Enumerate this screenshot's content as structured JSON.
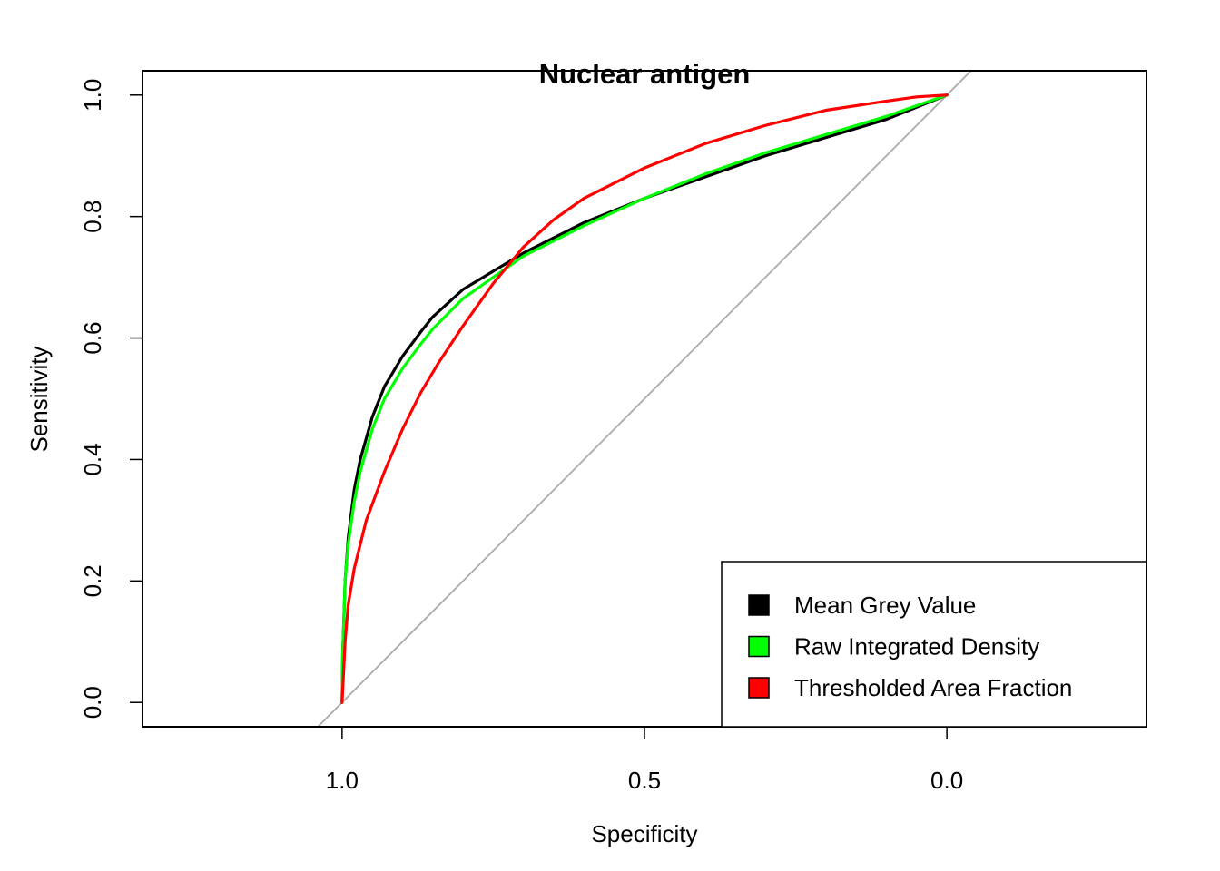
{
  "chart_data": {
    "type": "line",
    "title": "Nuclear antigen",
    "xlabel": "Specificity",
    "ylabel": "Sensitivity",
    "x_reversed": true,
    "xlim": [
      1.33,
      -0.33
    ],
    "ylim": [
      -0.04,
      1.04
    ],
    "xticks": [
      {
        "value": 1.0,
        "label": "1.0"
      },
      {
        "value": 0.5,
        "label": "0.5"
      },
      {
        "value": 0.0,
        "label": "0.0"
      }
    ],
    "yticks": [
      {
        "value": 0.0,
        "label": "0.0"
      },
      {
        "value": 0.2,
        "label": "0.2"
      },
      {
        "value": 0.4,
        "label": "0.4"
      },
      {
        "value": 0.6,
        "label": "0.6"
      },
      {
        "value": 0.8,
        "label": "0.8"
      },
      {
        "value": 1.0,
        "label": "1.0"
      }
    ],
    "reference_line": {
      "color": "#aaaaaa"
    },
    "legend_position": "bottom-right",
    "series": [
      {
        "name": "Mean Grey Value",
        "color": "#000000",
        "points": [
          [
            1.0,
            0.0
          ],
          [
            0.999,
            0.08
          ],
          [
            0.995,
            0.2
          ],
          [
            0.99,
            0.27
          ],
          [
            0.98,
            0.35
          ],
          [
            0.97,
            0.4
          ],
          [
            0.95,
            0.47
          ],
          [
            0.93,
            0.52
          ],
          [
            0.9,
            0.57
          ],
          [
            0.87,
            0.61
          ],
          [
            0.85,
            0.635
          ],
          [
            0.8,
            0.68
          ],
          [
            0.75,
            0.71
          ],
          [
            0.7,
            0.74
          ],
          [
            0.65,
            0.765
          ],
          [
            0.6,
            0.79
          ],
          [
            0.5,
            0.83
          ],
          [
            0.4,
            0.865
          ],
          [
            0.3,
            0.9
          ],
          [
            0.2,
            0.93
          ],
          [
            0.1,
            0.96
          ],
          [
            0.0,
            1.0
          ]
        ]
      },
      {
        "name": "Raw Integrated Density",
        "color": "#00ff00",
        "points": [
          [
            1.0,
            0.0
          ],
          [
            0.999,
            0.08
          ],
          [
            0.995,
            0.2
          ],
          [
            0.99,
            0.26
          ],
          [
            0.98,
            0.33
          ],
          [
            0.97,
            0.38
          ],
          [
            0.95,
            0.45
          ],
          [
            0.93,
            0.5
          ],
          [
            0.9,
            0.55
          ],
          [
            0.87,
            0.59
          ],
          [
            0.85,
            0.615
          ],
          [
            0.8,
            0.665
          ],
          [
            0.75,
            0.7
          ],
          [
            0.7,
            0.735
          ],
          [
            0.65,
            0.76
          ],
          [
            0.6,
            0.785
          ],
          [
            0.5,
            0.83
          ],
          [
            0.4,
            0.87
          ],
          [
            0.3,
            0.905
          ],
          [
            0.2,
            0.935
          ],
          [
            0.1,
            0.965
          ],
          [
            0.0,
            1.0
          ]
        ]
      },
      {
        "name": "Thresholded Area Fraction",
        "color": "#ff0000",
        "points": [
          [
            1.0,
            0.0
          ],
          [
            0.995,
            0.1
          ],
          [
            0.99,
            0.16
          ],
          [
            0.98,
            0.22
          ],
          [
            0.96,
            0.3
          ],
          [
            0.93,
            0.38
          ],
          [
            0.9,
            0.45
          ],
          [
            0.87,
            0.51
          ],
          [
            0.84,
            0.56
          ],
          [
            0.8,
            0.62
          ],
          [
            0.75,
            0.69
          ],
          [
            0.7,
            0.75
          ],
          [
            0.65,
            0.795
          ],
          [
            0.6,
            0.83
          ],
          [
            0.5,
            0.88
          ],
          [
            0.4,
            0.92
          ],
          [
            0.3,
            0.95
          ],
          [
            0.2,
            0.975
          ],
          [
            0.1,
            0.99
          ],
          [
            0.05,
            0.997
          ],
          [
            0.0,
            1.0
          ]
        ]
      }
    ]
  }
}
